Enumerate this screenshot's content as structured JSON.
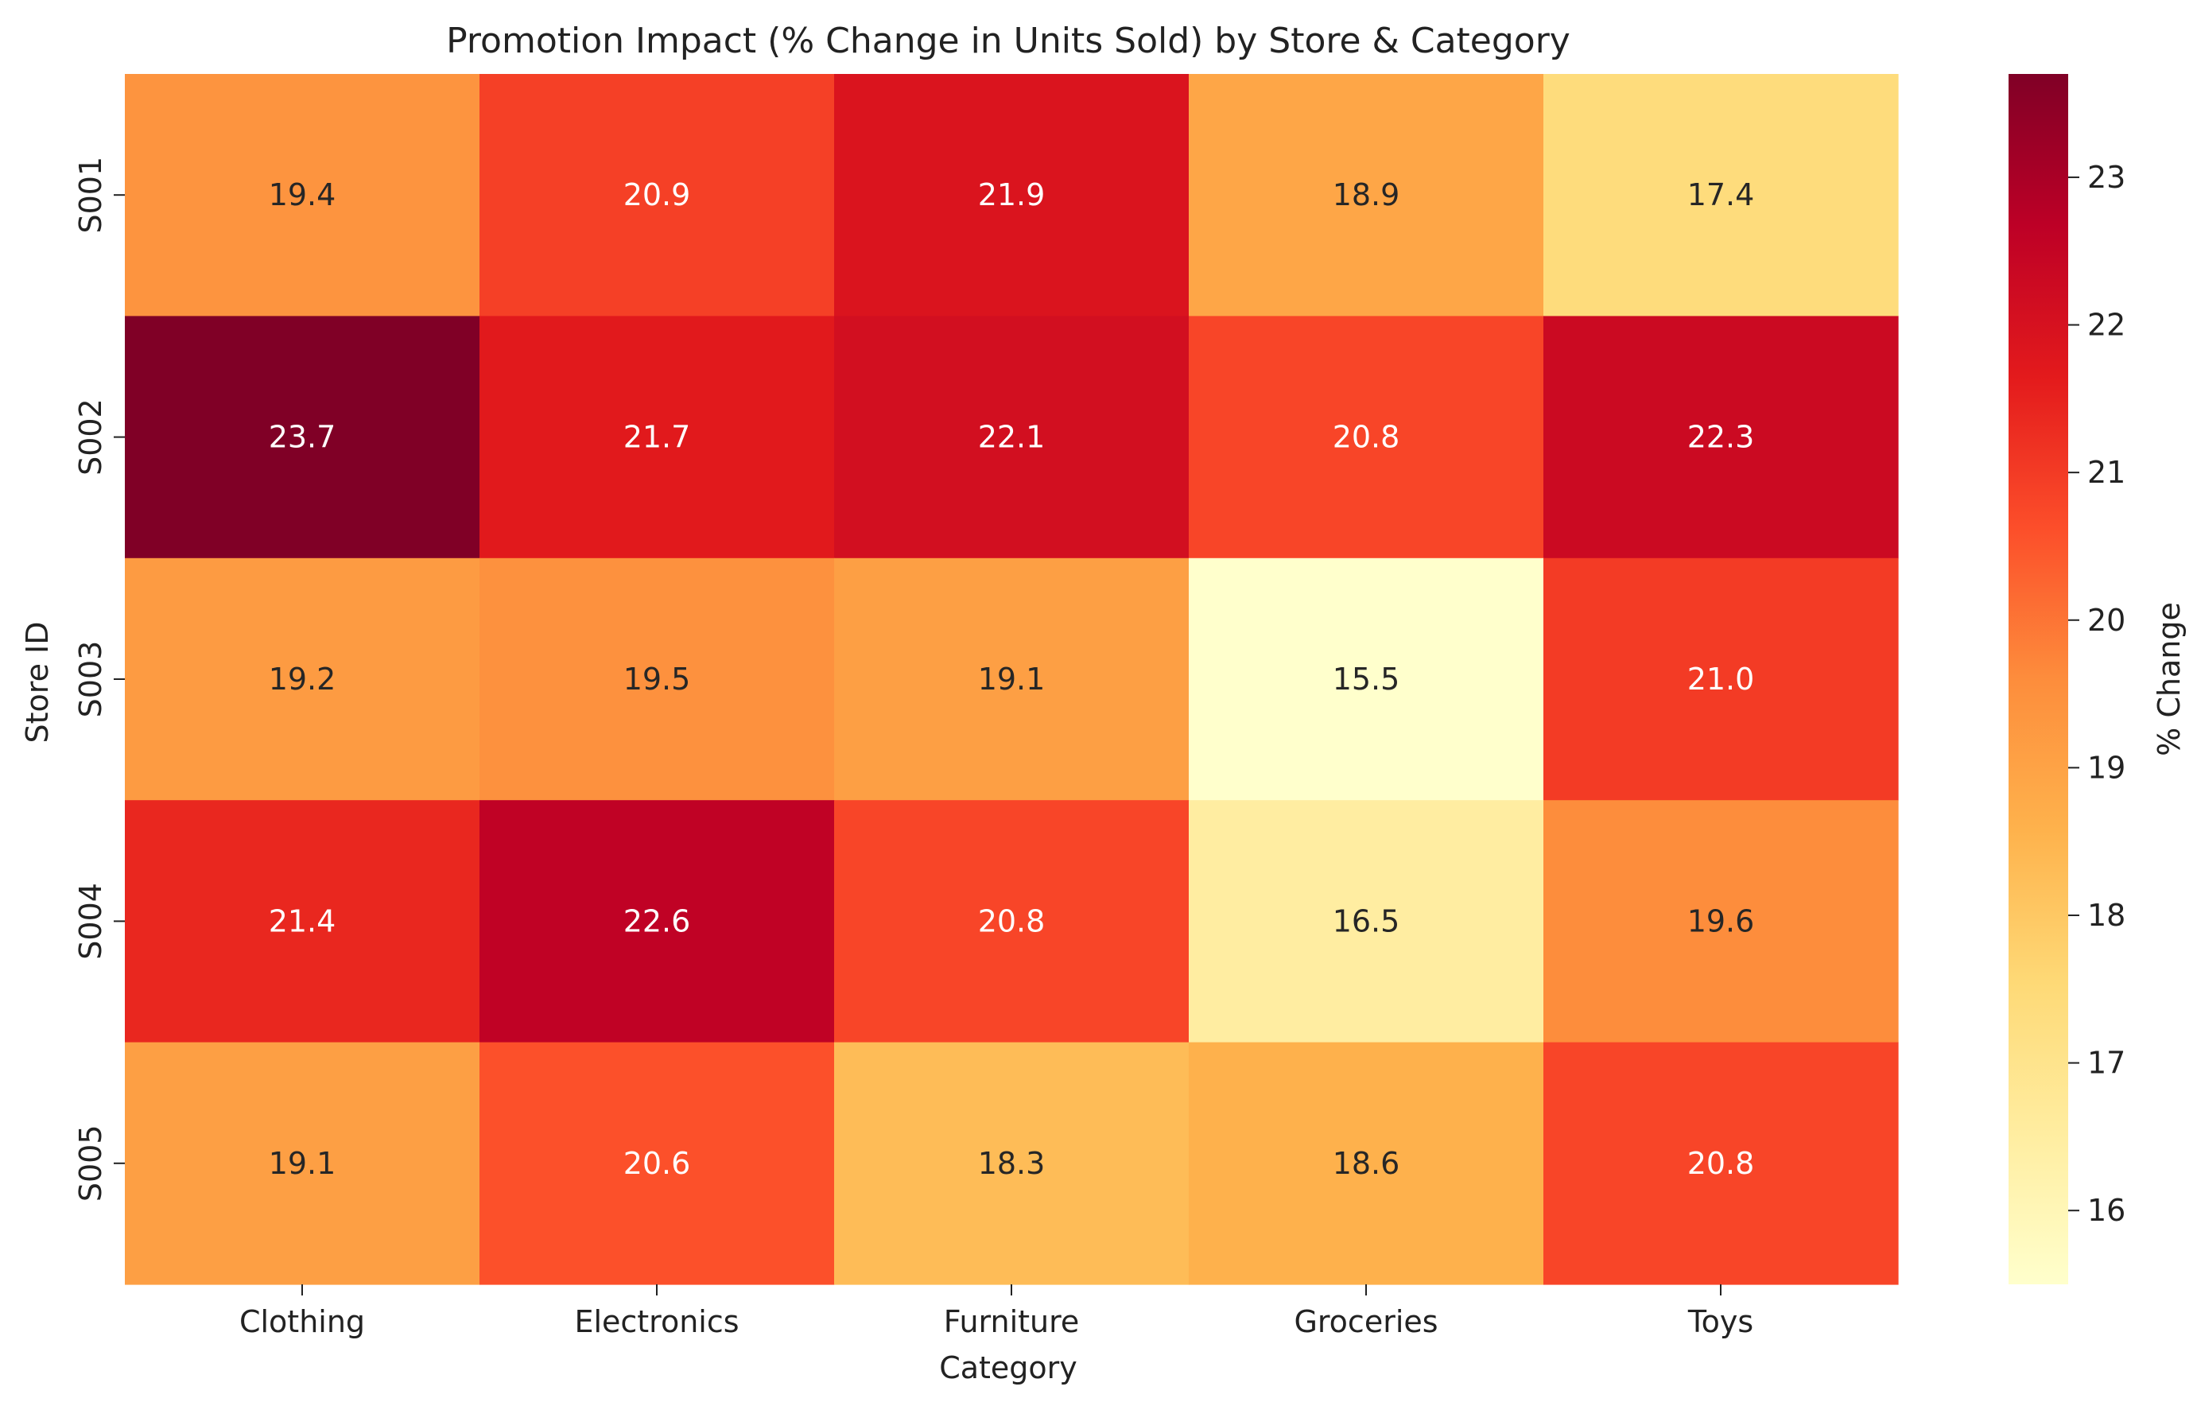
{
  "chart_data": {
    "type": "heatmap",
    "title": "Promotion Impact (% Change in Units Sold) by Store & Category",
    "xlabel": "Category",
    "ylabel": "Store ID",
    "x_categories": [
      "Clothing",
      "Electronics",
      "Furniture",
      "Groceries",
      "Toys"
    ],
    "y_categories": [
      "S001",
      "S002",
      "S003",
      "S004",
      "S005"
    ],
    "values": [
      [
        19.4,
        20.9,
        21.9,
        18.9,
        17.4
      ],
      [
        23.7,
        21.7,
        22.1,
        20.8,
        22.3
      ],
      [
        19.2,
        19.5,
        19.1,
        15.5,
        21.0
      ],
      [
        21.4,
        22.6,
        20.8,
        16.5,
        19.6
      ],
      [
        19.1,
        20.6,
        18.3,
        18.6,
        20.8
      ]
    ],
    "value_range": [
      15.5,
      23.7
    ],
    "colormap": "YlOrRd",
    "colorbar": {
      "label": "% Change",
      "ticks": [
        "16",
        "17",
        "18",
        "19",
        "20",
        "21",
        "22",
        "23"
      ]
    },
    "annotations": true,
    "grid": false,
    "legend": "colorbar-right"
  }
}
